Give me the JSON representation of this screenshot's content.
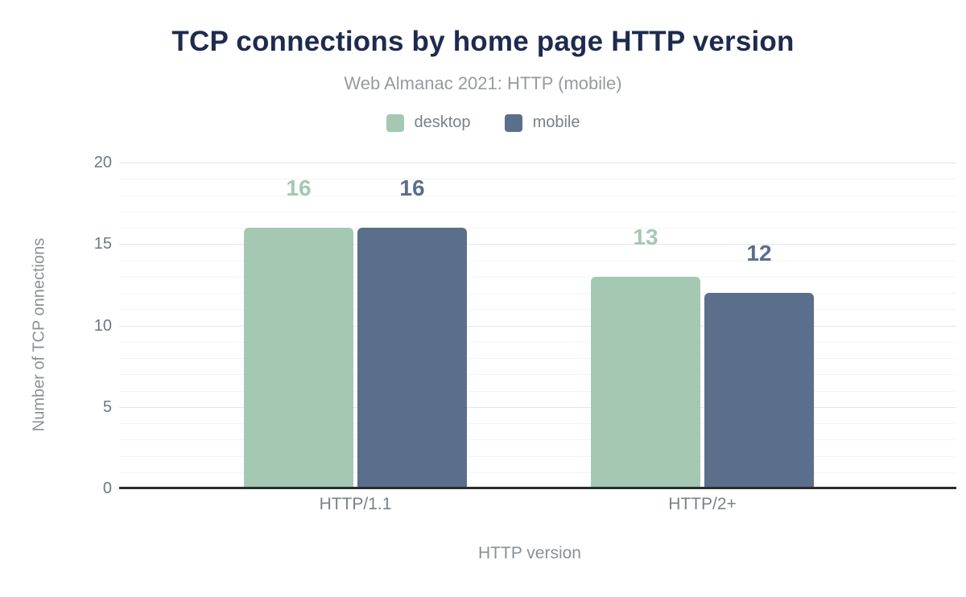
{
  "colors": {
    "title": "#1e2b4e",
    "subtitle_text": "#969b9e",
    "axis_text": "#7a8287",
    "tick_text": "#6e787e",
    "axis_line": "#2d2d2d",
    "grid_major": "#e4e5e6",
    "grid_minor": "#f4f4f4",
    "desktop": "#a5c8b3",
    "mobile": "#5b6e8b"
  },
  "chart_data": {
    "type": "bar",
    "title": "TCP connections by home page HTTP version",
    "subtitle": "Web Almanac 2021: HTTP (mobile)",
    "categories": [
      "HTTP/1.1",
      "HTTP/2+"
    ],
    "series": [
      {
        "name": "desktop",
        "color": "#a5c8b3",
        "values": [
          16,
          13
        ]
      },
      {
        "name": "mobile",
        "color": "#5b6e8b",
        "values": [
          16,
          12
        ]
      }
    ],
    "xlabel": "HTTP version",
    "ylabel": "Number of TCP onnections",
    "ylim": [
      0,
      20
    ],
    "yticks": [
      0,
      5,
      10,
      15,
      20
    ],
    "minor_grid_step": 1,
    "grid": true,
    "legend_position": "top",
    "data_labels_shown": true
  }
}
